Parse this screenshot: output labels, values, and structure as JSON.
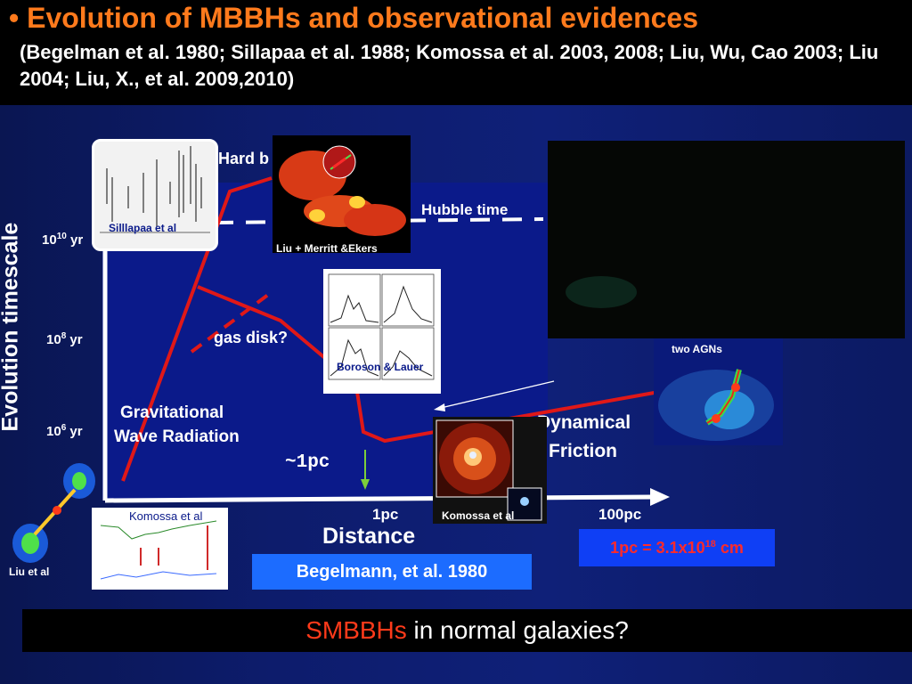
{
  "title": {
    "bullet": "•",
    "main": "Evolution of MBBHs and observational evidences",
    "refs": "(Begelman et al. 1980; Sillapaa et al. 1988; Komossa et al. 2003, 2008; Liu, Wu, Cao 2003; Liu 2004; Liu, X., et al. 2009,2010)"
  },
  "axes": {
    "ylabel": "Evolution timescale",
    "xlabel": "Distance",
    "yticks": [
      {
        "base": "10",
        "exp": "10",
        "unit": "yr"
      },
      {
        "base": "10",
        "exp": "8",
        "unit": "yr"
      },
      {
        "base": "10",
        "exp": "6",
        "unit": "yr"
      }
    ],
    "xticks": [
      "1pc",
      "100pc"
    ]
  },
  "labels": {
    "hard": "Hard b",
    "hubble": "Hubble time",
    "gasdisk": "gas disk?",
    "gw_line1": "Gravitational",
    "gw_line2": "Wave Radiation",
    "onepc": "~1pc",
    "dyn_line1": "Dynamical",
    "dyn_line2": "Friction"
  },
  "images": {
    "sillapaa": "Silllapaa et al",
    "merritt": "Liu + Merritt &Ekers",
    "boroson": "Boroson & Lauer",
    "komossa_center": "Komossa et al",
    "komossa_spec": "Komossa et al",
    "twoagns": "two AGNs",
    "liu": "Liu et al"
  },
  "boxes": {
    "citation": "Begelmann, et al. 1980",
    "unit_prefix": "1pc = 3.1x10",
    "unit_exp": "18",
    "unit_suffix": " cm"
  },
  "footer": {
    "highlight": "SMBBHs",
    "rest": " in normal galaxies?"
  },
  "colors": {
    "title": "#ff7a1c",
    "curve": "#e01818",
    "footer_highlight": "#ff3a1a",
    "unit_text": "#ff2a2a"
  }
}
